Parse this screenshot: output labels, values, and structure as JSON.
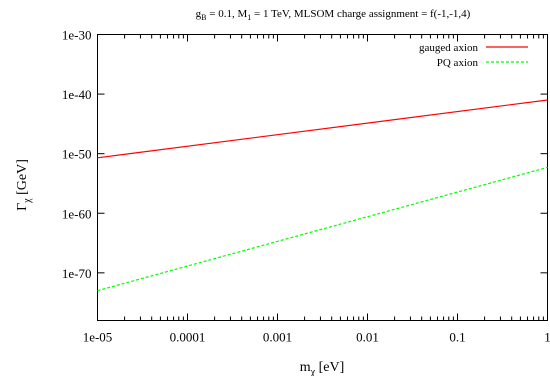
{
  "chart_data": {
    "type": "line",
    "title": "g_B = 0.1,  M_1 = 1 TeV,  MLSOM charge assignment = f(-1,-1,4)",
    "title_parts": {
      "g": "g",
      "g_sub": "B",
      "g_eq": " = 0.1,  ",
      "m": "M",
      "m_sub": "1",
      "m_rest": " = 1 TeV,  MLSOM charge assignment = f(-1,-1,4)"
    },
    "xlabel": "m_χ [eV]",
    "xlabel_parts": {
      "base": "m",
      "sub": "χ",
      "unit": " [eV]"
    },
    "ylabel": "Γ_χ [GeV]",
    "ylabel_parts": {
      "base": "Γ",
      "sub": "χ",
      "unit": " [GeV]"
    },
    "xscale": "log",
    "yscale": "log",
    "xlim": [
      1e-05,
      1
    ],
    "ylim": [
      1e-78,
      1e-30
    ],
    "x_ticks": [
      {
        "value": 1e-05,
        "label": "1e-05"
      },
      {
        "value": 0.0001,
        "label": "0.0001"
      },
      {
        "value": 0.001,
        "label": "0.001"
      },
      {
        "value": 0.01,
        "label": "0.01"
      },
      {
        "value": 0.1,
        "label": "0.1"
      },
      {
        "value": 1,
        "label": "1"
      }
    ],
    "y_ticks": [
      {
        "value": 1e-70,
        "label": "1e-70"
      },
      {
        "value": 1e-60,
        "label": "1e-60"
      },
      {
        "value": 1e-50,
        "label": "1e-50"
      },
      {
        "value": 1e-40,
        "label": "1e-40"
      },
      {
        "value": 1e-30,
        "label": "1e-30"
      }
    ],
    "grid": false,
    "legend_position": "top-right",
    "series": [
      {
        "name": "gauged axion",
        "color": "#ff0000",
        "dash": "solid",
        "x": [
          1e-05,
          1
        ],
        "y": [
          2e-51,
          1e-41
        ]
      },
      {
        "name": "PQ axion",
        "color": "#00ff00",
        "dash": "dashed",
        "x": [
          1e-05,
          1
        ],
        "y": [
          1e-73,
          5e-53
        ]
      }
    ]
  }
}
